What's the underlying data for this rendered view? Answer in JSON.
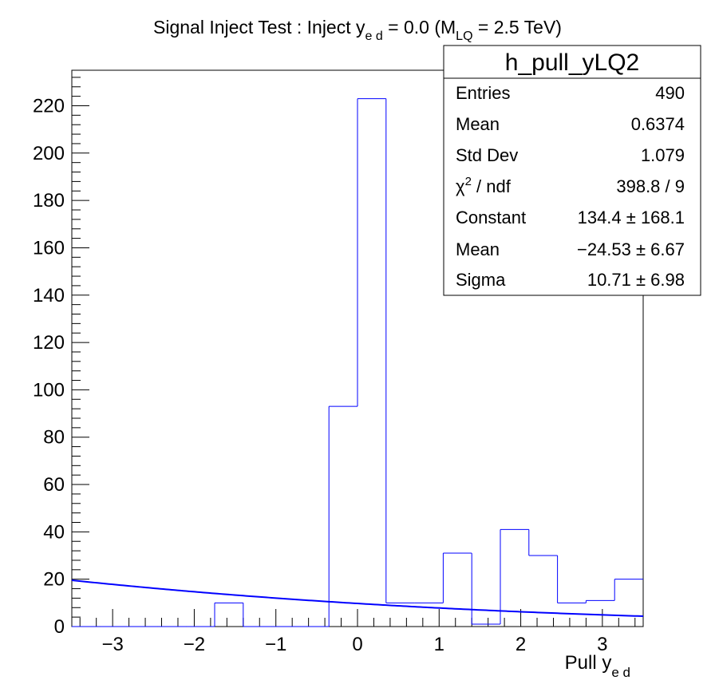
{
  "chart_data": {
    "type": "histogram",
    "title": {
      "pre": "Signal Inject Test : Inject y",
      "sub1": "e d",
      "mid": " = 0.0 (M",
      "sub2": "LQ",
      "post": " = 2.5 TeV)"
    },
    "xlabel": {
      "main": "Pull y",
      "sub": "e d"
    },
    "xlim": [
      -3.5,
      3.5
    ],
    "ylim": [
      0,
      235
    ],
    "x_ticks": [
      -3,
      -2,
      -1,
      0,
      1,
      2,
      3
    ],
    "x_tick_labels": [
      "−3",
      "−2",
      "−1",
      "0",
      "1",
      "2",
      "3"
    ],
    "y_ticks": [
      0,
      20,
      40,
      60,
      80,
      100,
      120,
      140,
      160,
      180,
      200,
      220
    ],
    "bin_edges": [
      -3.5,
      -3.15,
      -2.8,
      -2.45,
      -2.1,
      -1.75,
      -1.4,
      -1.05,
      -0.7,
      -0.35,
      0.0,
      0.35,
      0.7,
      1.05,
      1.4,
      1.75,
      2.1,
      2.45,
      2.8,
      3.15,
      3.5
    ],
    "bin_values": [
      0,
      0,
      0,
      0,
      0,
      10,
      0,
      0,
      0,
      93,
      223,
      10,
      10,
      31,
      1,
      41,
      30,
      10,
      11,
      20
    ],
    "histogram_color": "#0000ff",
    "fit": {
      "function": "gaus",
      "color": "#0000ff",
      "constant": 134.4,
      "mean": -24.53,
      "sigma": 10.71
    },
    "stats_box": {
      "title": "h_pull_yLQ2",
      "rows": [
        {
          "label": "Entries",
          "value": "490"
        },
        {
          "label": "Mean",
          "value": "0.6374"
        },
        {
          "label": "Std Dev",
          "value": "1.079"
        },
        {
          "label_chi": "χ",
          "label_sup": "2",
          "label_rest": " / ndf",
          "value": "398.8 / 9"
        },
        {
          "label": "Constant",
          "value": "134.4 ± 168.1"
        },
        {
          "label": "Mean",
          "value": "−24.53 ± 6.67"
        },
        {
          "label": "Sigma",
          "value": "10.71 ± 6.98"
        }
      ]
    }
  }
}
